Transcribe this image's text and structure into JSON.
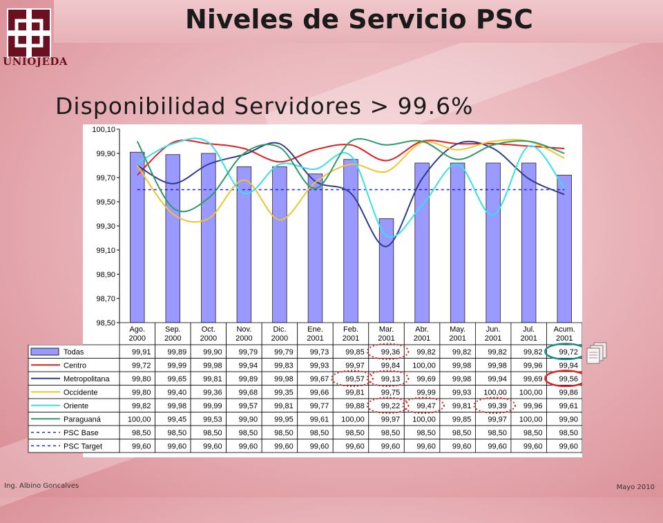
{
  "slide": {
    "title": "Niveles de Servicio PSC",
    "subtitle": "Disponibilidad Servidores > 99.6%",
    "logo_text": "UNIOJEDA",
    "footer_left": "Ing. Albino Goncalves",
    "footer_right": "Mayo 2010",
    "colors": {
      "logo": "#6b1020",
      "highlight_red": "#e02020",
      "highlight_teal": "#1a8a86"
    }
  },
  "chart_data": {
    "type": "bar",
    "ylim": [
      98.5,
      100.1
    ],
    "y_ticks": [
      "100,10",
      "99,90",
      "99,70",
      "99,50",
      "99,30",
      "99,10",
      "98,90",
      "98,70",
      "98,50"
    ],
    "categories": [
      [
        "Ago.",
        "2000"
      ],
      [
        "Sep.",
        "2000"
      ],
      [
        "Oct.",
        "2000"
      ],
      [
        "Nov.",
        "2000"
      ],
      [
        "Dic.",
        "2000"
      ],
      [
        "Ene.",
        "2001"
      ],
      [
        "Feb.",
        "2001"
      ],
      [
        "Mar.",
        "2001"
      ],
      [
        "Abr.",
        "2001"
      ],
      [
        "May.",
        "2001"
      ],
      [
        "Jun.",
        "2001"
      ],
      [
        "Jul.",
        "2001"
      ],
      [
        "Acum.",
        "2001"
      ]
    ],
    "series": [
      {
        "name": "Todas",
        "kind": "bar",
        "color": "#9999ff",
        "values": [
          99.91,
          99.89,
          99.9,
          99.79,
          99.79,
          99.73,
          99.85,
          99.36,
          99.82,
          99.82,
          99.82,
          99.82,
          99.72
        ],
        "labels": [
          "99,91",
          "99,89",
          "99,90",
          "99,79",
          "99,79",
          "99,73",
          "99,85",
          "99,36",
          "99,82",
          "99,82",
          "99,82",
          "99,82",
          "99,72"
        ]
      },
      {
        "name": "Centro",
        "kind": "line",
        "color": "#e02020",
        "values": [
          99.72,
          99.99,
          99.98,
          99.94,
          99.83,
          99.93,
          99.97,
          99.84,
          100.0,
          99.98,
          99.98,
          99.96,
          99.94
        ],
        "labels": [
          "99,72",
          "99,99",
          "99,98",
          "99,94",
          "99,83",
          "99,93",
          "99,97",
          "99,84",
          "100,00",
          "99,98",
          "99,98",
          "99,96",
          "99,94"
        ]
      },
      {
        "name": "Metropolitana",
        "kind": "line",
        "color": "#2e3a8c",
        "values": [
          99.8,
          99.65,
          99.81,
          99.89,
          99.98,
          99.67,
          99.57,
          99.13,
          99.69,
          99.98,
          99.94,
          99.69,
          99.56
        ],
        "labels": [
          "99,80",
          "99,65",
          "99,81",
          "99,89",
          "99,98",
          "99,67",
          "99,57",
          "99,13",
          "99,69",
          "99,98",
          "99,94",
          "99,69",
          "99,56"
        ]
      },
      {
        "name": "Occidente",
        "kind": "line",
        "color": "#f2c230",
        "values": [
          99.8,
          99.4,
          99.36,
          99.68,
          99.35,
          99.66,
          99.81,
          99.75,
          99.99,
          99.93,
          100.0,
          100.0,
          99.86
        ],
        "labels": [
          "99,80",
          "99,40",
          "99,36",
          "99,68",
          "99,35",
          "99,66",
          "99,81",
          "99,75",
          "99,99",
          "99,93",
          "100,00",
          "100,00",
          "99,86"
        ]
      },
      {
        "name": "Oriente",
        "kind": "line",
        "color": "#38e0e8",
        "values": [
          99.82,
          99.98,
          99.99,
          99.57,
          99.81,
          99.77,
          99.88,
          99.22,
          99.47,
          99.81,
          99.39,
          99.96,
          99.61
        ],
        "labels": [
          "99,82",
          "99,98",
          "99,99",
          "99,57",
          "99,81",
          "99,77",
          "99,88",
          "99,22",
          "99,47",
          "99,81",
          "99,39",
          "99,96",
          "99,61"
        ]
      },
      {
        "name": "Paraguaná",
        "kind": "line",
        "color": "#2e9a68",
        "values": [
          100.0,
          99.45,
          99.53,
          99.9,
          99.95,
          99.61,
          100.0,
          99.97,
          100.0,
          99.85,
          99.97,
          100.0,
          99.9
        ],
        "labels": [
          "100,00",
          "99,45",
          "99,53",
          "99,90",
          "99,95",
          "99,61",
          "100,00",
          "99,97",
          "100,00",
          "99,85",
          "99,97",
          "100,00",
          "99,90"
        ]
      },
      {
        "name": "PSC Base",
        "kind": "dash",
        "color": "#2e3a8c",
        "values": [
          98.5,
          98.5,
          98.5,
          98.5,
          98.5,
          98.5,
          98.5,
          98.5,
          98.5,
          98.5,
          98.5,
          98.5,
          98.5
        ],
        "labels": [
          "98,50",
          "98,50",
          "98,50",
          "98,50",
          "98,50",
          "98,50",
          "98,50",
          "98,50",
          "98,50",
          "98,50",
          "98,50",
          "98,50",
          "98,50"
        ]
      },
      {
        "name": "PSC Target",
        "kind": "dash",
        "color": "#2020d0",
        "values": [
          99.6,
          99.6,
          99.6,
          99.6,
          99.6,
          99.6,
          99.6,
          99.6,
          99.6,
          99.6,
          99.6,
          99.6,
          99.6
        ],
        "labels": [
          "99,60",
          "99,60",
          "99,60",
          "99,60",
          "99,60",
          "99,60",
          "99,60",
          "99,60",
          "99,60",
          "99,60",
          "99,60",
          "99,60",
          "99,60"
        ]
      }
    ],
    "highlights": [
      {
        "series": "Todas",
        "index": 7,
        "style": "dotted",
        "color": "#e02020"
      },
      {
        "series": "Metropolitana",
        "index": 6,
        "style": "dotted",
        "color": "#e02020"
      },
      {
        "series": "Metropolitana",
        "index": 7,
        "style": "dotted",
        "color": "#e02020"
      },
      {
        "series": "Oriente",
        "index": 7,
        "style": "dotted",
        "color": "#e02020"
      },
      {
        "series": "Oriente",
        "index": 8,
        "style": "dotted",
        "color": "#e02020"
      },
      {
        "series": "Oriente",
        "index": 10,
        "style": "dotted",
        "color": "#e02020"
      },
      {
        "series": "Todas",
        "index": 12,
        "style": "solid",
        "color": "#1a8a86"
      },
      {
        "series": "Metropolitana",
        "index": 12,
        "style": "solid",
        "color": "#e02020"
      }
    ]
  }
}
